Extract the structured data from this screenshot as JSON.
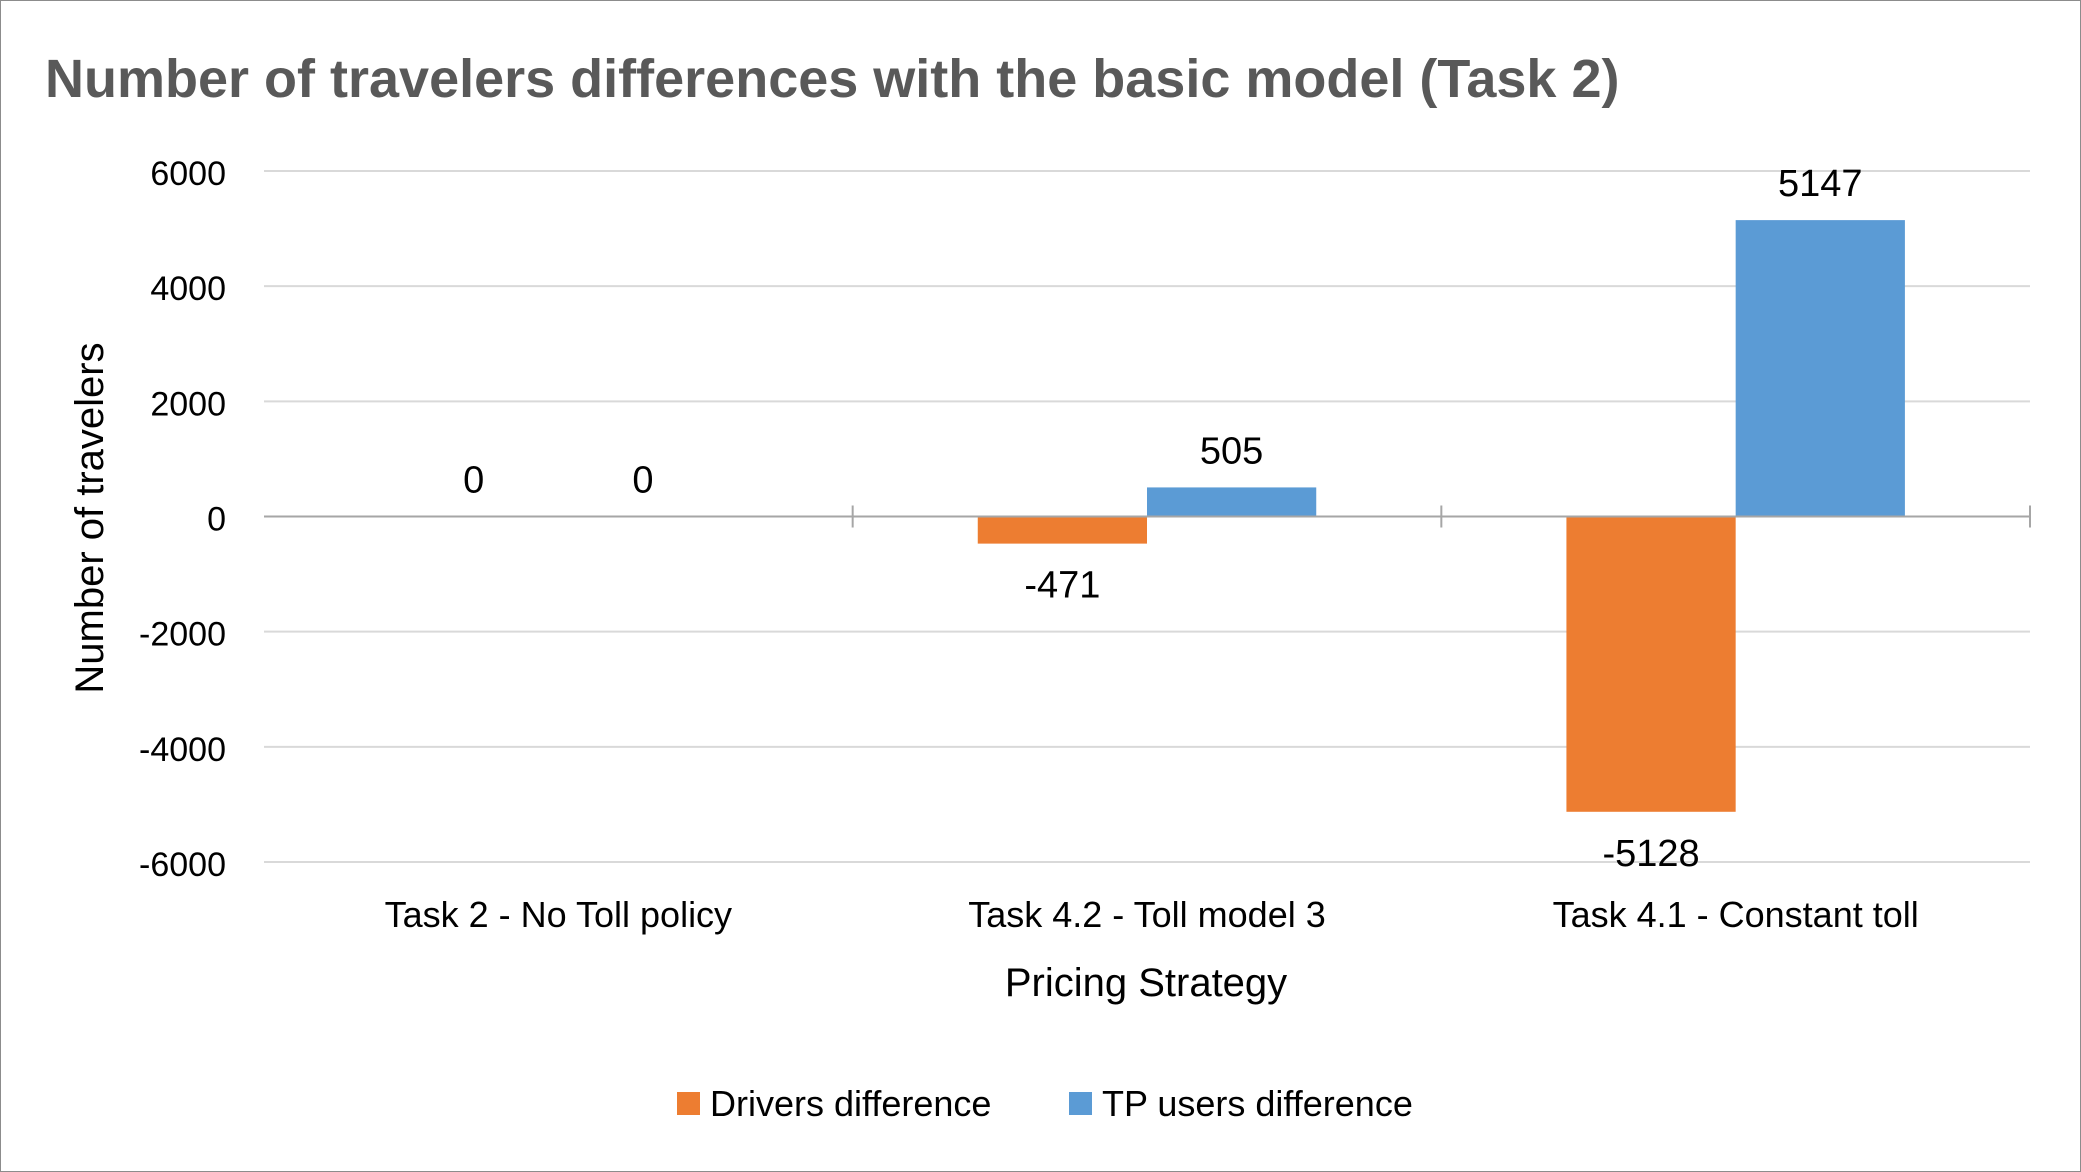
{
  "chart_data": {
    "type": "bar",
    "title": "Number of travelers differences with the basic model (Task 2)",
    "xlabel": "Pricing Strategy",
    "ylabel": "Number of travelers",
    "categories": [
      "Task 2 - No Toll policy",
      "Task 4.2 - Toll model 3",
      "Task 4.1 - Constant toll"
    ],
    "series": [
      {
        "name": "Drivers difference",
        "values": [
          0,
          -471,
          -5128
        ],
        "color": "#ed7d31"
      },
      {
        "name": "TP users difference",
        "values": [
          0,
          505,
          5147
        ],
        "color": "#5b9bd5"
      }
    ],
    "ylim": [
      -6000,
      6000
    ],
    "yticks": [
      6000,
      4000,
      2000,
      0,
      -2000,
      -4000,
      -6000
    ],
    "grid": true,
    "legend_position": "bottom",
    "data_labels": true
  }
}
